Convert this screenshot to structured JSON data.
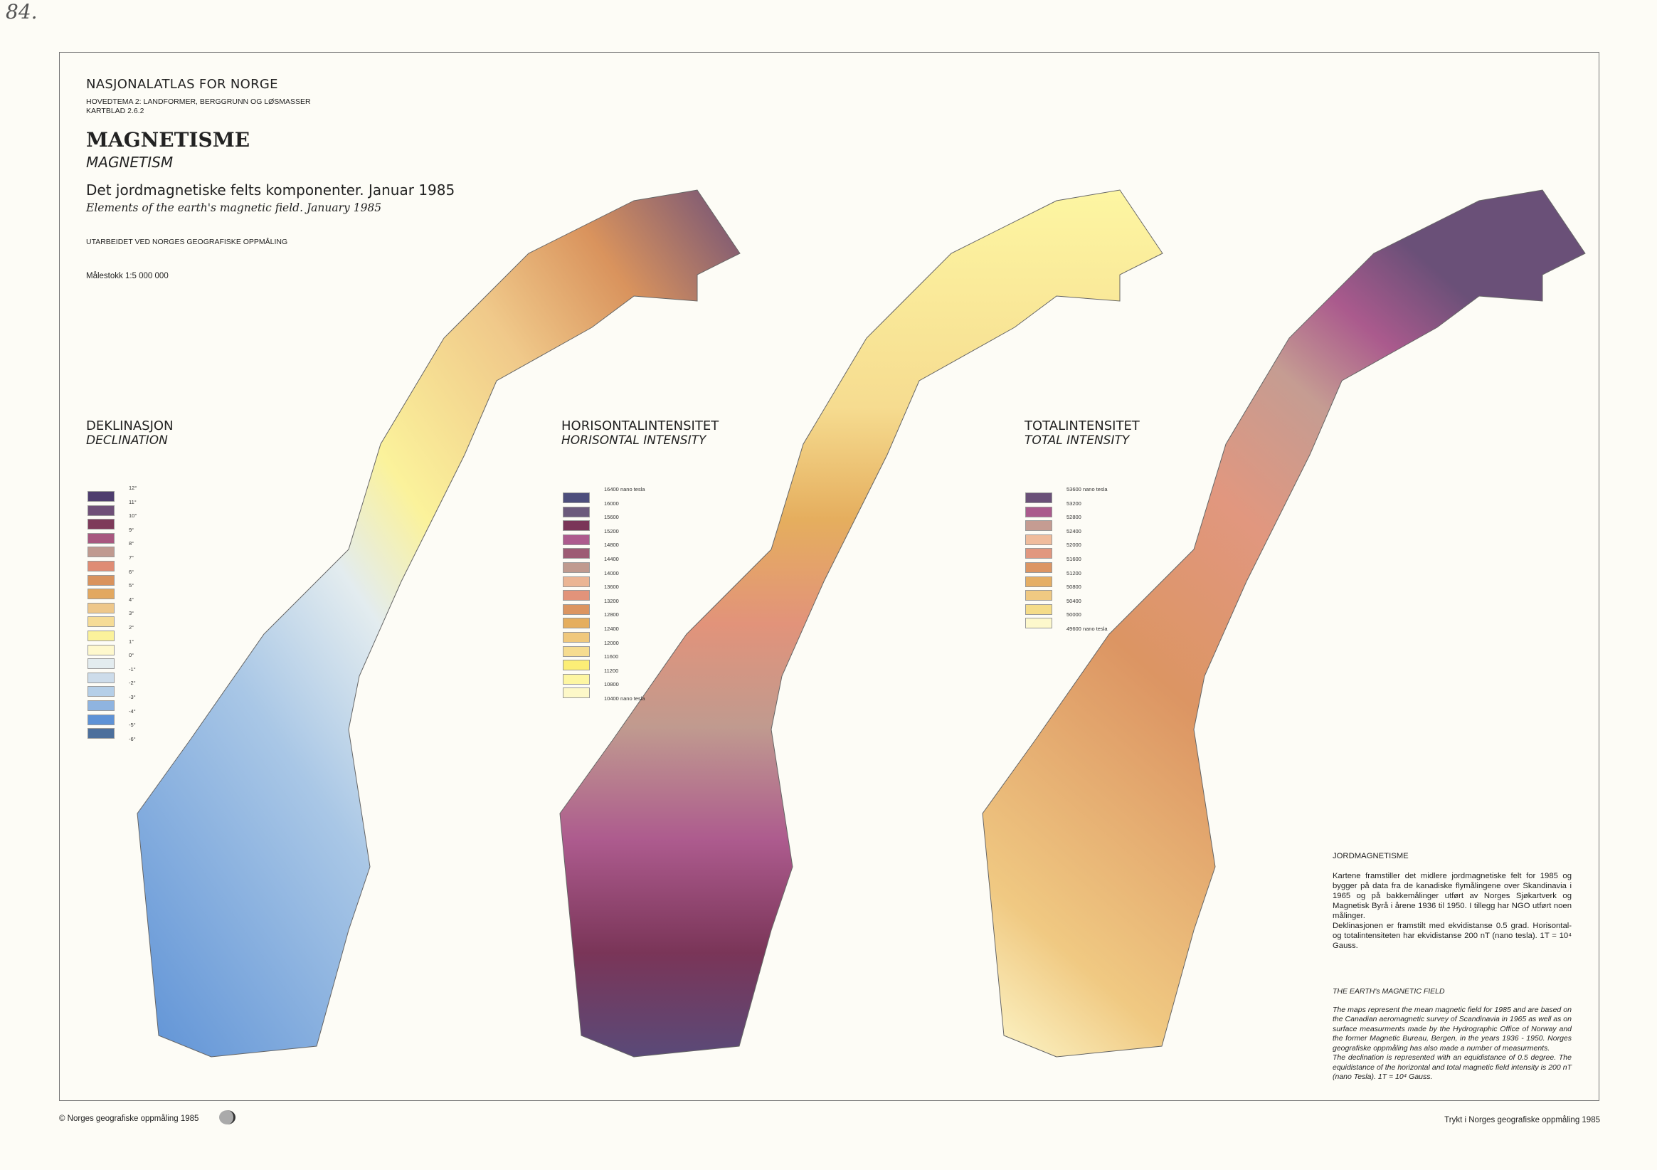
{
  "corner_note": "84.",
  "header": {
    "atlas": "NASJONALATLAS FOR NORGE",
    "theme": "HOVEDTEMA 2: LANDFORMER, BERGGRUNN  OG LØSMASSER",
    "sheet": "KARTBLAD 2.6.2",
    "title": "MAGNETISME",
    "title_en": "MAGNETISM",
    "heading": "Det jordmagnetiske felts komponenter. Januar 1985",
    "heading_en": "Elements of the earth's magnetic field. January 1985",
    "producer": "UTARBEIDET VED NORGES GEOGRAFISKE OPPMÅLING",
    "scale": "Målestokk 1:5 000 000"
  },
  "maps": [
    {
      "title": "DEKLINASJON",
      "title_en": "DECLINATION",
      "labels": [
        "12°",
        "11°",
        "10°",
        "9°",
        "8°",
        "7°",
        "6°",
        "5°",
        "4°",
        "3°",
        "2°",
        "1°",
        "0°",
        "-1°",
        "-2°",
        "-3°",
        "-4°",
        "-5°",
        "-6°"
      ],
      "colors": [
        "#4e3d6e",
        "#6f5078",
        "#7e3a5a",
        "#a8577f",
        "#c09a90",
        "#df8c74",
        "#d9935d",
        "#e2a860",
        "#eec78a",
        "#f6dc96",
        "#fbf29b",
        "#fef8cd",
        "#e3ecef",
        "#cddcea",
        "#b5cfe8",
        "#8fb4e0",
        "#5e92d6",
        "#4c6f9c"
      ]
    },
    {
      "title": "HORISONTALINTENSITET",
      "title_en": "HORISONTAL  INTENSITY",
      "labels": [
        "16400 nano tesla",
        "16000",
        "15600",
        "15200",
        "14800",
        "14400",
        "14000",
        "13600",
        "13200",
        "12800",
        "12400",
        "12000",
        "11600",
        "11200",
        "10800",
        "10400  nano tesla"
      ],
      "colors": [
        "#4d4e7c",
        "#6c5a7c",
        "#7a3558",
        "#ad5b8e",
        "#9d5b74",
        "#c09a8f",
        "#ebb594",
        "#e2937a",
        "#dc9560",
        "#e5ae5e",
        "#f0c87c",
        "#f6dc90",
        "#fcee76",
        "#fdf6a2",
        "#fdf8c8"
      ]
    },
    {
      "title": "TOTALINTENSITET",
      "title_en": "TOTAL  INTENSITY",
      "labels": [
        "53600 nano tesla",
        "53200",
        "52800",
        "52400",
        "52000",
        "51600",
        "51200",
        "50800",
        "50400",
        "50000",
        "49600  nano tesla"
      ],
      "colors": [
        "#6a5078",
        "#aa5a8d",
        "#c59c92",
        "#f0bc9c",
        "#e1977f",
        "#dc9563",
        "#e5ae64",
        "#f0c982",
        "#f5dc88",
        "#fdf8cc"
      ]
    }
  ],
  "notes": {
    "no_title": "JORDMAGNETISME",
    "no_body_1": "Kartene framstiller det midlere jordmagnetiske felt for 1985 og bygger på data fra de kanadiske flymålingene over Skandinavia i 1965 og på bakkemålinger utført av Norges Sjøkartverk og Magnetisk Byrå i årene 1936 til 1950. I tillegg har NGO utført noen målinger.",
    "no_body_2": "Deklinasjonen er framstilt med ekvidistanse 0.5 grad. Horisontal- og totalintensiteten har ekvidistanse 200 nT (nano tesla). 1T = 10⁴ Gauss.",
    "en_title": "THE EARTH's MAGNETIC FIELD",
    "en_body_1": "The maps represent the mean magnetic field for 1985 and are based on the Canadian aeromagnetic survey of Scandinavia in 1965 as well as on surface measurments made by the Hydrographic Office of Norway and the former Magnetic Bureau, Bergen, in the years 1936 - 1950. Norges geografiske oppmåling has also made a number of measurments.",
    "en_body_2": "The declination is represented with an equidistance of 0.5 degree. The equidistance of the horizontal and total magnetic field intensity is 200 nT (nano Tesla). 1T = 10⁴ Gauss."
  },
  "footer": {
    "copyright": "© Norges geografiske oppmåling  1985",
    "printed": "Trykt i Norges geografiske oppmåling   1985"
  }
}
